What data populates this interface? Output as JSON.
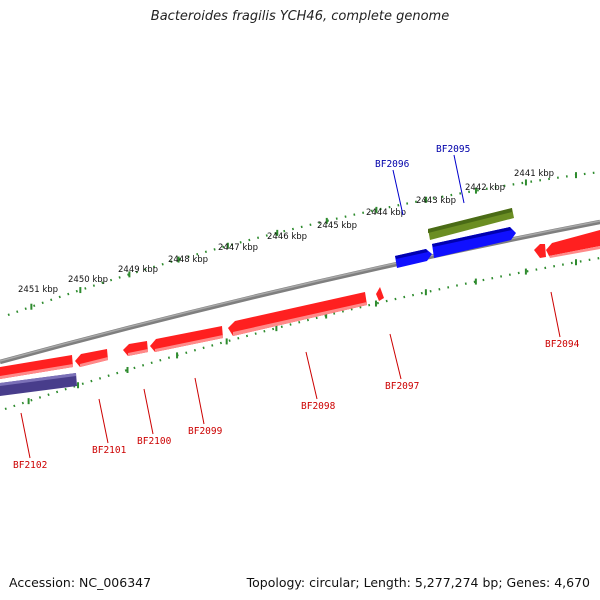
{
  "title": "Bacteroides fragilis YCH46, complete genome",
  "footer": {
    "accession": "Accession: NC_006347",
    "summary": "Topology: circular; Length: 5,277,274 bp; Genes: 4,670"
  },
  "colors": {
    "backbone": "#808080",
    "tick": "#228822",
    "forward_gene": "#0000ff",
    "forward_gene_alt": "#6b8e23",
    "reverse_gene": "#ff0000",
    "reverse_gene_alt": "#483d8b",
    "label_forward": "#0000aa",
    "label_reverse": "#cc0000"
  },
  "scale": {
    "ticks_kbp": [
      "2441 kbp",
      "2442 kbp",
      "2443 kbp",
      "2444 kbp",
      "2445 kbp",
      "2446 kbp",
      "2447 kbp",
      "2448 kbp",
      "2449 kbp",
      "2450 kbp",
      "2451 kbp"
    ]
  },
  "genes": [
    {
      "label": "BF2096",
      "strand": "forward"
    },
    {
      "label": "BF2095",
      "strand": "forward"
    },
    {
      "label": "BF2094",
      "strand": "reverse"
    },
    {
      "label": "BF2097",
      "strand": "reverse"
    },
    {
      "label": "BF2098",
      "strand": "reverse"
    },
    {
      "label": "BF2099",
      "strand": "reverse"
    },
    {
      "label": "BF2100",
      "strand": "reverse"
    },
    {
      "label": "BF2101",
      "strand": "reverse"
    },
    {
      "label": "BF2102",
      "strand": "reverse"
    }
  ]
}
